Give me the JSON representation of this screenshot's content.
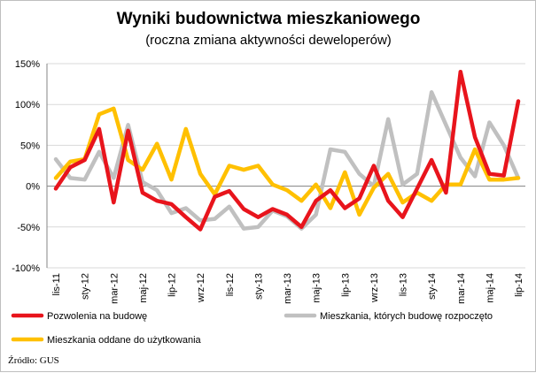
{
  "chart_data": {
    "type": "line",
    "title": "Wyniki budownictwa mieszkaniowego",
    "subtitle": "(roczna zmiana aktywności deweloperów)",
    "xlabel": "",
    "ylabel": "",
    "ylim": [
      -100,
      150
    ],
    "yticks": [
      -100,
      -50,
      0,
      50,
      100,
      150
    ],
    "ytick_labels": [
      "-100%",
      "-50%",
      "0%",
      "50%",
      "100%",
      "150%"
    ],
    "x": [
      "lis-11",
      "gru-11",
      "sty-12",
      "lut-12",
      "mar-12",
      "kwi-12",
      "maj-12",
      "cze-12",
      "lip-12",
      "sie-12",
      "wrz-12",
      "paź-12",
      "lis-12",
      "gru-12",
      "sty-13",
      "lut-13",
      "mar-13",
      "kwi-13",
      "maj-13",
      "cze-13",
      "lip-13",
      "sie-13",
      "wrz-13",
      "paź-13",
      "lis-13",
      "gru-13",
      "sty-14",
      "lut-14",
      "mar-14",
      "kwi-14",
      "maj-14",
      "cze-14",
      "lip-14"
    ],
    "xtick_labels": [
      "lis-11",
      "sty-12",
      "mar-12",
      "maj-12",
      "lip-12",
      "wrz-12",
      "lis-12",
      "sty-13",
      "mar-13",
      "maj-13",
      "lip-13",
      "wrz-13",
      "lis-13",
      "sty-14",
      "mar-14",
      "maj-14",
      "lip-14"
    ],
    "grid": true,
    "legend_position": "bottom",
    "series": [
      {
        "name": "Pozwolenia na budowę",
        "color": "#e8141c",
        "values": [
          -3,
          23,
          32,
          70,
          -20,
          68,
          -8,
          -18,
          -22,
          -38,
          -53,
          -13,
          -6,
          -28,
          -38,
          -28,
          -35,
          -50,
          -18,
          -5,
          -27,
          -15,
          25,
          -18,
          -38,
          -3,
          32,
          -8,
          140,
          60,
          15,
          13,
          104
        ]
      },
      {
        "name": "Mieszkania, których budowę rozpoczęto",
        "color": "#c0c0c0",
        "values": [
          33,
          10,
          8,
          42,
          10,
          75,
          5,
          -5,
          -33,
          -27,
          -42,
          -40,
          -25,
          -52,
          -50,
          -30,
          -37,
          -52,
          -35,
          45,
          42,
          15,
          0,
          82,
          2,
          15,
          115,
          75,
          35,
          12,
          78,
          50,
          10
        ]
      },
      {
        "name": "Mieszkania oddane do użytkowania",
        "color": "#ffc000",
        "values": [
          10,
          30,
          33,
          88,
          95,
          32,
          20,
          52,
          8,
          70,
          15,
          -10,
          25,
          20,
          25,
          2,
          -5,
          -18,
          2,
          -27,
          17,
          -35,
          -2,
          15,
          -20,
          -8,
          -18,
          2,
          2,
          45,
          8,
          8,
          10
        ]
      }
    ],
    "source": "Źródło: GUS"
  }
}
